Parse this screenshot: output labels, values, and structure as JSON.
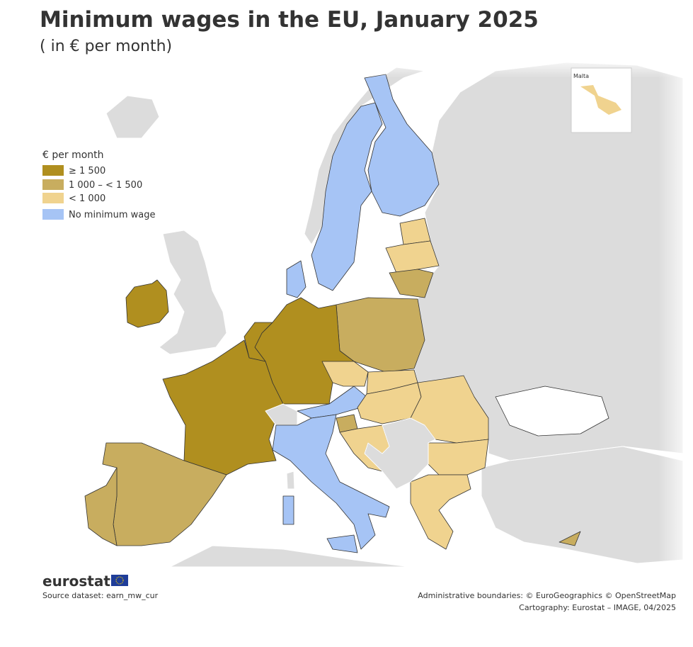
{
  "header": {
    "title": "Minimum wages in the EU, January 2025",
    "subtitle": "( in € per month)"
  },
  "legend": {
    "title": "€ per month",
    "items": [
      {
        "label": "≥ 1 500",
        "color": "#b08f1f"
      },
      {
        "label": "1 000 – < 1 500",
        "color": "#c8ad5f"
      },
      {
        "label": "< 1 000",
        "color": "#f0d38f"
      },
      {
        "label": "No minimum wage",
        "color": "#a6c4f5"
      }
    ]
  },
  "inset": {
    "label": "Malta"
  },
  "footer": {
    "logo": "eurostat",
    "source": "Source dataset: earn_mw_cur",
    "credits": [
      "Administrative boundaries: © EuroGeographics © OpenStreetMap",
      "Cartography: Eurostat – IMAGE, 04/2025"
    ]
  }
}
